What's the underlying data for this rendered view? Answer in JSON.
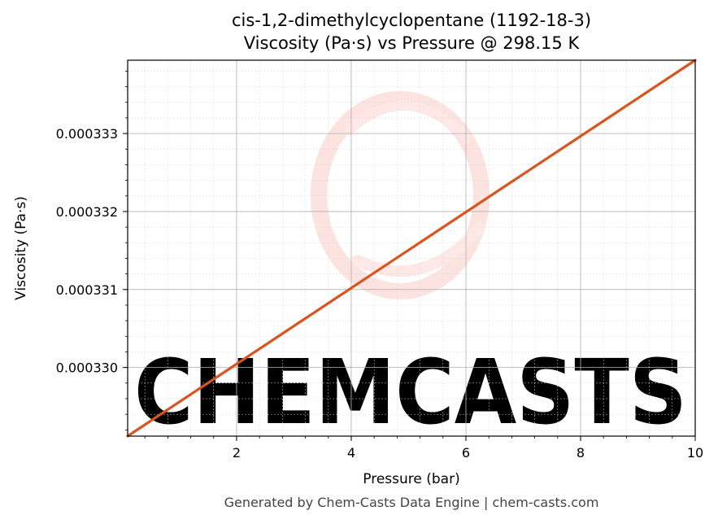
{
  "chart_data": {
    "type": "line",
    "title": "cis-1,2-dimethylcyclopentane (1192-18-3)",
    "subtitle": "Viscosity (Pa·s) vs Pressure @ 298.15 K",
    "xlabel": "Pressure (bar)",
    "ylabel": "Viscosity (Pa·s)",
    "xlim": [
      0.1,
      10
    ],
    "ylim": [
      0.00032912,
      0.00033394
    ],
    "x_ticks": [
      2,
      4,
      6,
      8,
      10
    ],
    "x_tick_labels": [
      "2",
      "4",
      "6",
      "8",
      "10"
    ],
    "y_ticks": [
      0.00033,
      0.000331,
      0.000332,
      0.000333
    ],
    "y_tick_labels": [
      "0.000330",
      "0.000331",
      "0.000332",
      "0.000333"
    ],
    "grid": true,
    "series": [
      {
        "color": "#d9541e",
        "x": [
          0.1,
          10
        ],
        "y": [
          0.00032912,
          0.00033394
        ]
      }
    ]
  },
  "watermark": {
    "text": "CHEMCASTS",
    "color": "#fde3e0"
  },
  "footer": "Generated by Chem-Casts Data Engine | chem-casts.com"
}
